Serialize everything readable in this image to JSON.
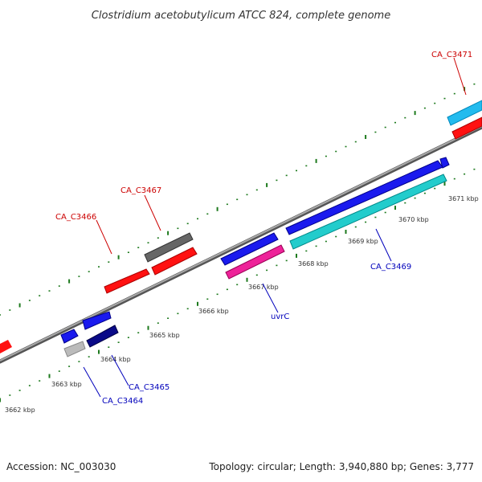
{
  "title": "Clostridium acetobutylicum ATCC 824, complete genome",
  "footer": {
    "accession": "Accession: NC_003030",
    "summary": "Topology: circular; Length: 3,940,880 bp; Genes: 3,777"
  },
  "scale_labels": [
    "3662 kbp",
    "3663 kbp",
    "3664 kbp",
    "3665 kbp",
    "3666 kbp",
    "3667 kbp",
    "3668 kbp",
    "3669 kbp",
    "3670 kbp",
    "3671 kbp"
  ],
  "gene_labels": {
    "CA_C3464": "CA_C3464",
    "CA_C3465": "CA_C3465",
    "CA_C3466": "CA_C3466",
    "CA_C3467": "CA_C3467",
    "uvrC": "uvrC",
    "CA_C3469": "CA_C3469",
    "CA_C3471": "CA_C3471"
  },
  "colors": {
    "backbone": "#8a8a8a",
    "ticks": "#1e7a1e",
    "label_forward": "#cc0000",
    "label_reverse": "#0000bb",
    "red": "#ff1111",
    "dark_gray": "#666666",
    "light_gray": "#bbbbbb",
    "blue": "#1a1aee",
    "navy": "#0a0a88",
    "magenta": "#ee2299",
    "teal": "#22cccc",
    "sky": "#22bbee"
  }
}
